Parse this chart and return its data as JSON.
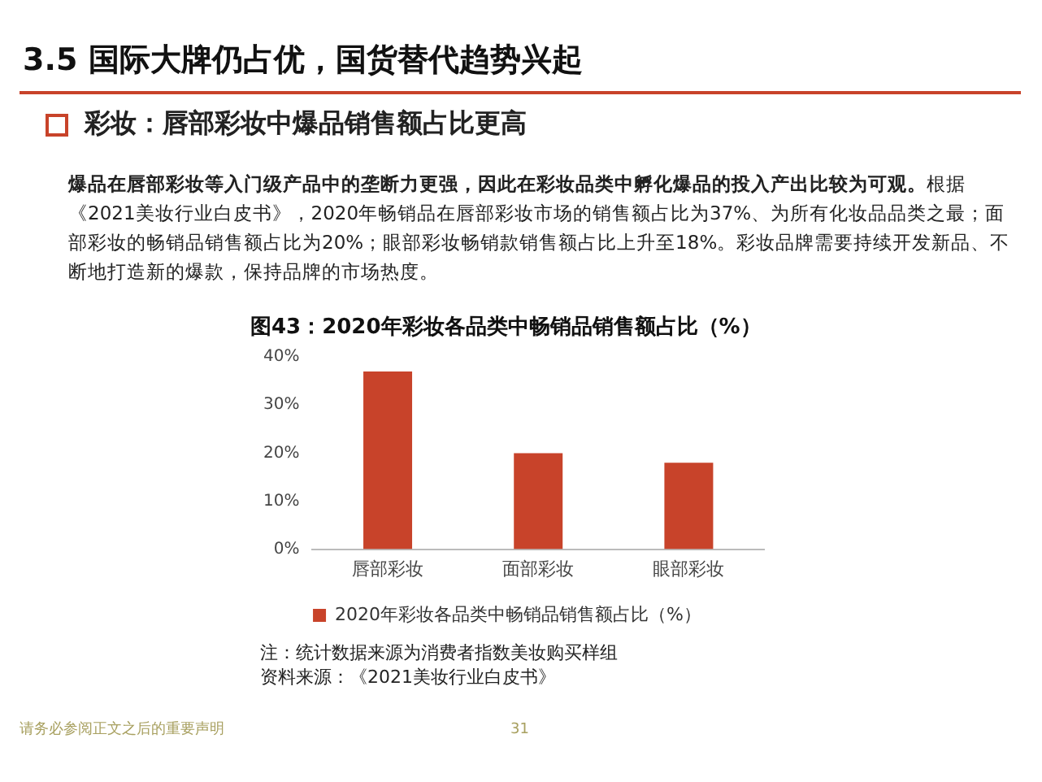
{
  "chart_data": {
    "type": "bar",
    "title": "图43：2020年彩妆各品类中畅销品销售额占比（%）",
    "categories": [
      "唇部彩妆",
      "面部彩妆",
      "眼部彩妆"
    ],
    "series": [
      {
        "name": "2020年彩妆各品类中畅销品销售额占比（%）",
        "color": "#c8432a",
        "values": [
          37,
          20,
          18
        ]
      }
    ],
    "ylim": [
      0,
      40
    ],
    "yticks": [
      {
        "value": 0,
        "label": "0%"
      },
      {
        "value": 10,
        "label": "10%"
      },
      {
        "value": 20,
        "label": "20%"
      },
      {
        "value": 30,
        "label": "30%"
      },
      {
        "value": 40,
        "label": "40%"
      }
    ],
    "grid": false,
    "legend": "bottom",
    "annotations": [
      "3.5 国际大牌仍占优，国货替代趋势兴起",
      "彩妆：唇部彩妆中爆品销售额占比更高",
      "爆品在唇部彩妆等入门级产品中的垄断力更强，因此在彩妆品类中孵化爆品的投入产出比较为可观。",
      "根据《2021美妆行业白皮书》，2020年畅销品在唇部彩妆市场的销售额占比为37%、为所有化妆品品类之最；面部彩妆的畅销品销售额占比为20%；眼部彩妆畅销款销售额占比上升至18%。彩妆品牌需要持续开发新品、不断地打造新的爆款，保持品牌的市场热度。",
      "注：统计数据来源为消费者指数美妆购买样组",
      "资料来源：《2021美妆行业白皮书》",
      "请务必参阅正文之后的重要声明",
      "31"
    ]
  }
}
